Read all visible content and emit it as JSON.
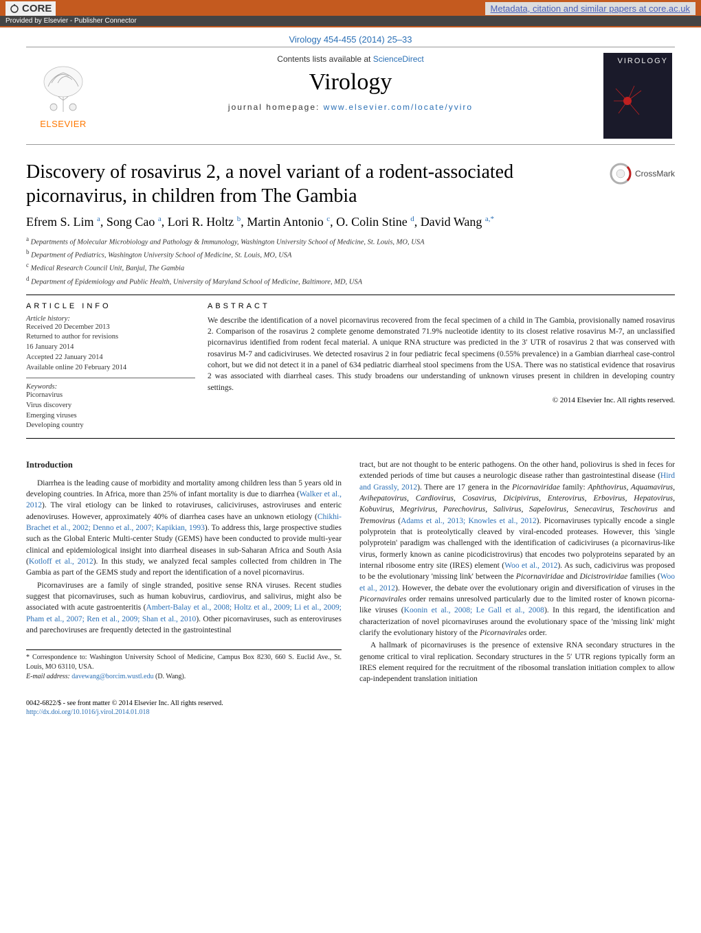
{
  "colors": {
    "core_bg": "#c45a1f",
    "link_blue": "#2a6fb5",
    "elsevier_orange": "#ff7800",
    "text": "#222222",
    "rule": "#000000"
  },
  "core": {
    "logo_text": "CORE",
    "metadata_link": "Metadata, citation and similar papers at core.ac.uk",
    "provided_by": "Provided by Elsevier - Publisher Connector"
  },
  "volume": "Virology 454-455 (2014) 25–33",
  "header": {
    "contents_prefix": "Contents lists available at ",
    "contents_link": "ScienceDirect",
    "journal_name": "Virology",
    "homepage_prefix": "journal homepage: ",
    "homepage_url": "www.elsevier.com/locate/yviro",
    "elsevier_text": "ELSEVIER",
    "cover_title": "VIROLOGY"
  },
  "crossmark": "CrossMark",
  "title": "Discovery of rosavirus 2, a novel variant of a rodent-associated picornavirus, in children from The Gambia",
  "authors_html": "Efrem S. Lim <sup><a>a</a></sup>, Song Cao <sup><a>a</a></sup>, Lori R. Holtz <sup><a>b</a></sup>, Martin Antonio <sup><a>c</a></sup>, O. Colin Stine <sup><a>d</a></sup>, David Wang <sup><a>a,*</a></sup>",
  "affiliations": [
    {
      "sup": "a",
      "text": "Departments of Molecular Microbiology and Pathology & Immunology, Washington University School of Medicine, St. Louis, MO, USA"
    },
    {
      "sup": "b",
      "text": "Department of Pediatrics, Washington University School of Medicine, St. Louis, MO, USA"
    },
    {
      "sup": "c",
      "text": "Medical Research Council Unit, Banjul, The Gambia"
    },
    {
      "sup": "d",
      "text": "Department of Epidemiology and Public Health, University of Maryland School of Medicine, Baltimore, MD, USA"
    }
  ],
  "article_info": {
    "heading": "ARTICLE INFO",
    "history_label": "Article history:",
    "history": [
      "Received 20 December 2013",
      "Returned to author for revisions",
      "16 January 2014",
      "Accepted 22 January 2014",
      "Available online 20 February 2014"
    ],
    "keywords_label": "Keywords:",
    "keywords": [
      "Picornavirus",
      "Virus discovery",
      "Emerging viruses",
      "Developing country"
    ]
  },
  "abstract": {
    "heading": "ABSTRACT",
    "text": "We describe the identification of a novel picornavirus recovered from the fecal specimen of a child in The Gambia, provisionally named rosavirus 2. Comparison of the rosavirus 2 complete genome demonstrated 71.9% nucleotide identity to its closest relative rosavirus M-7, an unclassified picornavirus identified from rodent fecal material. A unique RNA structure was predicted in the 3′ UTR of rosavirus 2 that was conserved with rosavirus M-7 and cadiciviruses. We detected rosavirus 2 in four pediatric fecal specimens (0.55% prevalence) in a Gambian diarrheal case-control cohort, but we did not detect it in a panel of 634 pediatric diarrheal stool specimens from the USA. There was no statistical evidence that rosavirus 2 was associated with diarrheal cases. This study broadens our understanding of unknown viruses present in children in developing country settings.",
    "copyright": "© 2014 Elsevier Inc. All rights reserved."
  },
  "intro_heading": "Introduction",
  "left_col_paragraphs": [
    "Diarrhea is the leading cause of morbidity and mortality among children less than 5 years old in developing countries. In Africa, more than 25% of infant mortality is due to diarrhea (<span class=\"ref-link\">Walker et al., 2012</span>). The viral etiology can be linked to rotaviruses, caliciviruses, astroviruses and enteric adenoviruses. However, approximately 40% of diarrhea cases have an unknown etiology (<span class=\"ref-link\">Chikhi-Brachet et al., 2002; Denno et al., 2007; Kapikian, 1993</span>). To address this, large prospective studies such as the Global Enteric Multi-center Study (GEMS) have been conducted to provide multi-year clinical and epidemiological insight into diarrheal diseases in sub-Saharan Africa and South Asia (<span class=\"ref-link\">Kotloff et al., 2012</span>). In this study, we analyzed fecal samples collected from children in The Gambia as part of the GEMS study and report the identification of a novel picornavirus.",
    "Picornaviruses are a family of single stranded, positive sense RNA viruses. Recent studies suggest that picornaviruses, such as human kobuvirus, cardiovirus, and salivirus, might also be associated with acute gastroenteritis (<span class=\"ref-link\">Ambert-Balay et al., 2008; Holtz et al., 2009; Li et al., 2009; Pham et al., 2007; Ren et al., 2009; Shan et al., 2010</span>). Other picornaviruses, such as enteroviruses and parechoviruses are frequently detected in the gastrointestinal"
  ],
  "right_col_paragraphs": [
    "tract, but are not thought to be enteric pathogens. On the other hand, poliovirus is shed in feces for extended periods of time but causes a neurologic disease rather than gastrointestinal disease (<span class=\"ref-link\">Hird and Grassly, 2012</span>). There are 17 genera in the <span class=\"italic\">Picornaviridae</span> family: <span class=\"italic\">Aphthovirus, Aquamavirus, Avihepatovirus, Cardiovirus, Cosavirus, Dicipivirus, Enterovirus, Erbovirus, Hepatovirus, Kobuvirus, Megrivirus, Parechovirus, Salivirus, Sapelovirus, Senecavirus, Teschovirus</span> and <span class=\"italic\">Tremovirus</span> (<span class=\"ref-link\">Adams et al., 2013; Knowles et al., 2012</span>). Picornaviruses typically encode a single polyprotein that is proteolytically cleaved by viral-encoded proteases. However, this 'single polyprotein' paradigm was challenged with the identification of cadiciviruses (a picornavirus-like virus, formerly known as canine picodicistrovirus) that encodes two polyproteins separated by an internal ribosome entry site (IRES) element (<span class=\"ref-link\">Woo et al., 2012</span>). As such, cadicivirus was proposed to be the evolutionary 'missing link' between the <span class=\"italic\">Picornaviridae</span> and <span class=\"italic\">Dicistroviridae</span> families (<span class=\"ref-link\">Woo et al., 2012</span>). However, the debate over the evolutionary origin and diversification of viruses in the <span class=\"italic\">Picornavirales</span> order remains unresolved particularly due to the limited roster of known picorna-like viruses (<span class=\"ref-link\">Koonin et al., 2008; Le Gall et al., 2008</span>). In this regard, the identification and characterization of novel picornaviruses around the evolutionary space of the 'missing link' might clarify the evolutionary history of the <span class=\"italic\">Picornavirales</span> order.",
    "A hallmark of picornaviruses is the presence of extensive RNA secondary structures in the genome critical to viral replication. Secondary structures in the 5′ UTR regions typically form an IRES element required for the recruitment of the ribosomal translation initiation complex to allow cap-independent translation initiation"
  ],
  "footnotes": {
    "corr": "* Correspondence to: Washington University School of Medicine, Campus Box 8230, 660 S. Euclid Ave., St. Louis, MO 63110, USA.",
    "email_label": "E-mail address:",
    "email": "davewang@borcim.wustl.edu",
    "email_name": "(D. Wang)."
  },
  "footer": {
    "line1": "0042-6822/$ - see front matter © 2014 Elsevier Inc. All rights reserved.",
    "doi": "http://dx.doi.org/10.1016/j.virol.2014.01.018"
  }
}
